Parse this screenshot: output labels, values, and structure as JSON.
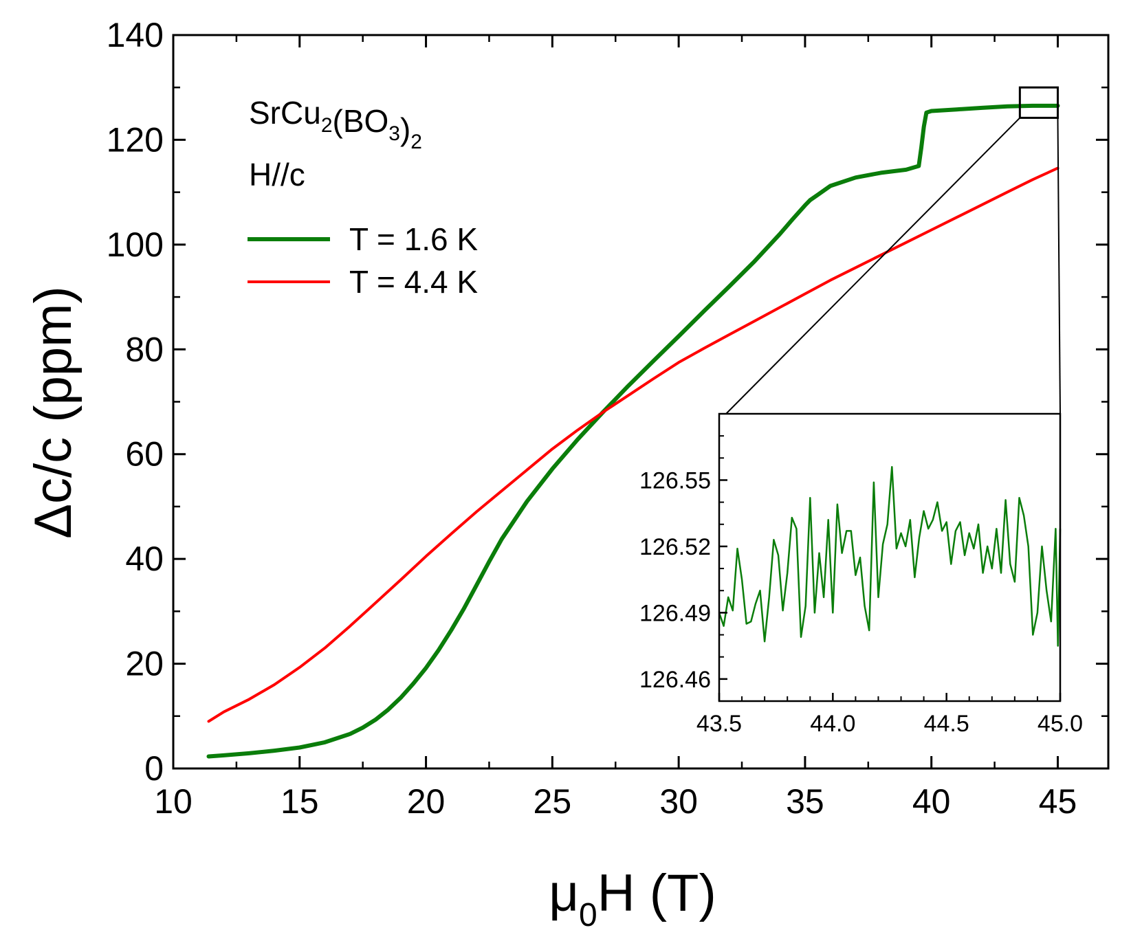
{
  "chart_data": [
    {
      "id": "main",
      "type": "line",
      "xlabel": "μ0H (T)",
      "xlabel_parts": {
        "base": "μ",
        "sub": "0",
        "rest": "H (T)"
      },
      "ylabel": "Δc/c (ppm)",
      "xlim": [
        10,
        47
      ],
      "ylim": [
        0,
        140
      ],
      "xticks": [
        10,
        15,
        20,
        25,
        30,
        35,
        40,
        45
      ],
      "yticks": [
        0,
        20,
        40,
        60,
        80,
        100,
        120,
        140
      ],
      "xtick_labels": [
        "10",
        "15",
        "20",
        "25",
        "30",
        "35",
        "40",
        "45"
      ],
      "ytick_labels": [
        "0",
        "20",
        "40",
        "60",
        "80",
        "100",
        "120",
        "140"
      ],
      "annotations": {
        "compound": "SrCu2(BO3)2",
        "compound_parts": [
          {
            "t": "SrCu",
            "sub": false
          },
          {
            "t": "2",
            "sub": true
          },
          {
            "t": "(BO",
            "sub": false
          },
          {
            "t": "3",
            "sub": true
          },
          {
            "t": ")",
            "sub": false
          },
          {
            "t": "2",
            "sub": true
          }
        ],
        "field_direction": "H//c"
      },
      "legend_position": "top-left",
      "zoom_box": {
        "x": [
          43.5,
          45.0
        ],
        "y": [
          124.2,
          130.0
        ]
      },
      "series": [
        {
          "name": "T = 1.6 K",
          "color": "#0a7d0a",
          "x": [
            11.4,
            12,
            13,
            14,
            15,
            16,
            17,
            17.5,
            18,
            18.5,
            19,
            19.5,
            20,
            20.5,
            21,
            21.5,
            22,
            22.5,
            23,
            24,
            25,
            26,
            27,
            28,
            29,
            30,
            31,
            32,
            33,
            34,
            34.5,
            35,
            35.2,
            35.5,
            36,
            37,
            38,
            39,
            39.5,
            39.6,
            39.7,
            39.8,
            40,
            41,
            42,
            43,
            44,
            45
          ],
          "y": [
            2.3,
            2.5,
            2.9,
            3.4,
            4.0,
            5.0,
            6.6,
            7.8,
            9.3,
            11.2,
            13.5,
            16.2,
            19.2,
            22.6,
            26.4,
            30.5,
            35.0,
            39.5,
            43.8,
            51.0,
            57.2,
            62.8,
            68.0,
            73.0,
            77.8,
            82.5,
            87.3,
            92.0,
            96.8,
            102.0,
            104.8,
            107.5,
            108.5,
            109.5,
            111.2,
            112.8,
            113.7,
            114.3,
            115.0,
            118.5,
            122.5,
            125.2,
            125.5,
            125.8,
            126.1,
            126.4,
            126.5,
            126.5
          ]
        },
        {
          "name": "T = 4.4 K",
          "color": "#ff0000",
          "x": [
            11.4,
            12,
            13,
            14,
            15,
            16,
            17,
            18,
            19,
            20,
            21,
            22,
            23,
            24,
            25,
            26,
            27,
            28,
            29,
            30,
            31,
            32,
            33,
            34,
            35,
            36,
            37,
            38,
            39,
            40,
            41,
            42,
            43,
            44,
            45
          ],
          "y": [
            9.0,
            10.8,
            13.2,
            16.0,
            19.3,
            23.0,
            27.2,
            31.6,
            36.0,
            40.5,
            44.8,
            49.0,
            53.0,
            57.0,
            61.0,
            64.6,
            68.0,
            71.2,
            74.4,
            77.5,
            80.2,
            82.8,
            85.4,
            88.0,
            90.6,
            93.2,
            95.6,
            98.0,
            100.4,
            102.8,
            105.2,
            107.6,
            110.0,
            112.4,
            114.6
          ]
        }
      ]
    },
    {
      "id": "inset",
      "type": "line",
      "xlabel": "",
      "ylabel": "",
      "xlim": [
        43.5,
        45.0
      ],
      "ylim": [
        126.45,
        126.58
      ],
      "xticks": [
        43.5,
        44.0,
        44.5,
        45.0
      ],
      "yticks": [
        126.46,
        126.49,
        126.52,
        126.55
      ],
      "xtick_labels": [
        "43.5",
        "44.0",
        "44.5",
        "45.0"
      ],
      "ytick_labels": [
        "126.46",
        "126.49",
        "126.52",
        "126.55"
      ],
      "series": [
        {
          "name": "T = 1.6 K (zoom)",
          "color": "#0a7d0a",
          "x": [
            43.5,
            43.52,
            43.54,
            43.56,
            43.58,
            43.6,
            43.62,
            43.64,
            43.66,
            43.68,
            43.7,
            43.72,
            43.74,
            43.76,
            43.78,
            43.8,
            43.82,
            43.84,
            43.86,
            43.88,
            43.9,
            43.92,
            43.94,
            43.96,
            43.98,
            44.0,
            44.02,
            44.04,
            44.06,
            44.08,
            44.1,
            44.12,
            44.14,
            44.16,
            44.18,
            44.2,
            44.22,
            44.24,
            44.26,
            44.28,
            44.3,
            44.32,
            44.34,
            44.36,
            44.38,
            44.4,
            44.42,
            44.44,
            44.46,
            44.48,
            44.5,
            44.52,
            44.54,
            44.56,
            44.58,
            44.6,
            44.62,
            44.64,
            44.66,
            44.68,
            44.7,
            44.72,
            44.74,
            44.76,
            44.78,
            44.8,
            44.82,
            44.84,
            44.86,
            44.88,
            44.9,
            44.92,
            44.94,
            44.96,
            44.98,
            44.99,
            45.0
          ],
          "y": [
            126.49,
            126.484,
            126.497,
            126.491,
            126.519,
            126.505,
            126.485,
            126.486,
            126.494,
            126.5,
            126.477,
            126.497,
            126.523,
            126.516,
            126.491,
            126.508,
            126.533,
            126.528,
            126.479,
            126.493,
            126.542,
            126.49,
            126.517,
            126.497,
            126.532,
            126.49,
            126.539,
            126.517,
            126.527,
            126.527,
            126.507,
            126.515,
            126.493,
            126.482,
            126.549,
            126.497,
            126.521,
            126.53,
            126.556,
            126.519,
            126.526,
            126.52,
            126.532,
            126.506,
            126.524,
            126.536,
            126.528,
            126.532,
            126.54,
            126.527,
            126.531,
            126.512,
            126.527,
            126.531,
            126.516,
            126.526,
            126.519,
            126.53,
            126.508,
            126.52,
            126.51,
            126.528,
            126.508,
            126.541,
            126.512,
            126.504,
            126.542,
            126.534,
            126.52,
            126.48,
            126.49,
            126.52,
            126.5,
            126.486,
            126.528,
            126.475,
            126.528
          ]
        }
      ]
    }
  ]
}
